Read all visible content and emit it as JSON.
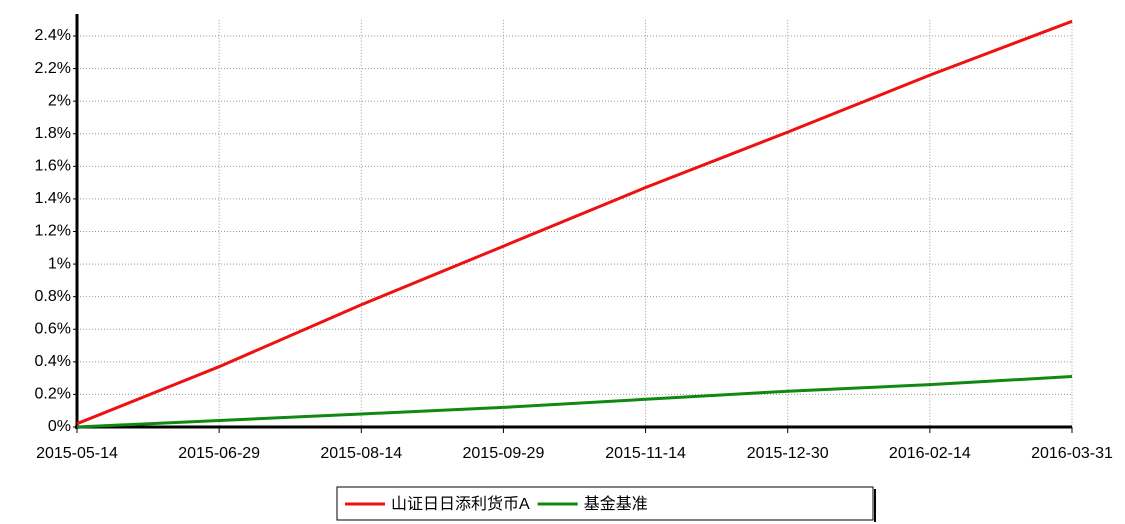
{
  "chart_data": {
    "type": "line",
    "x": [
      "2015-05-14",
      "2015-06-29",
      "2015-08-14",
      "2015-09-29",
      "2015-11-14",
      "2015-12-30",
      "2016-02-14",
      "2016-03-31"
    ],
    "series": [
      {
        "name": "山证日日添利货币A",
        "color": "#ee1111",
        "values": [
          0.02,
          0.37,
          0.75,
          1.11,
          1.47,
          1.81,
          2.16,
          2.49
        ]
      },
      {
        "name": "基金基准",
        "color": "#118811",
        "values": [
          0,
          0.04,
          0.08,
          0.12,
          0.17,
          0.22,
          0.26,
          0.31
        ]
      }
    ],
    "xlim": [
      "2015-05-14",
      "2016-03-31"
    ],
    "xticks": [
      "2015-05-14",
      "2015-06-29",
      "2015-08-14",
      "2015-09-29",
      "2015-11-14",
      "2015-12-30",
      "2016-02-14",
      "2016-03-31"
    ],
    "ylim": [
      0,
      2.5
    ],
    "yticks": [
      {
        "value": 0,
        "label": "0%"
      },
      {
        "value": 0.2,
        "label": "0.2%"
      },
      {
        "value": 0.4,
        "label": "0.4%"
      },
      {
        "value": 0.6,
        "label": "0.6%"
      },
      {
        "value": 0.8,
        "label": "0.8%"
      },
      {
        "value": 1,
        "label": "1%"
      },
      {
        "value": 1.2,
        "label": "1.2%"
      },
      {
        "value": 1.4,
        "label": "1.4%"
      },
      {
        "value": 1.6,
        "label": "1.6%"
      },
      {
        "value": 1.8,
        "label": "1.8%"
      },
      {
        "value": 2,
        "label": "2%"
      },
      {
        "value": 2.2,
        "label": "2.2%"
      },
      {
        "value": 2.4,
        "label": "2.4%"
      }
    ],
    "grid": true,
    "legend": "bottom"
  }
}
